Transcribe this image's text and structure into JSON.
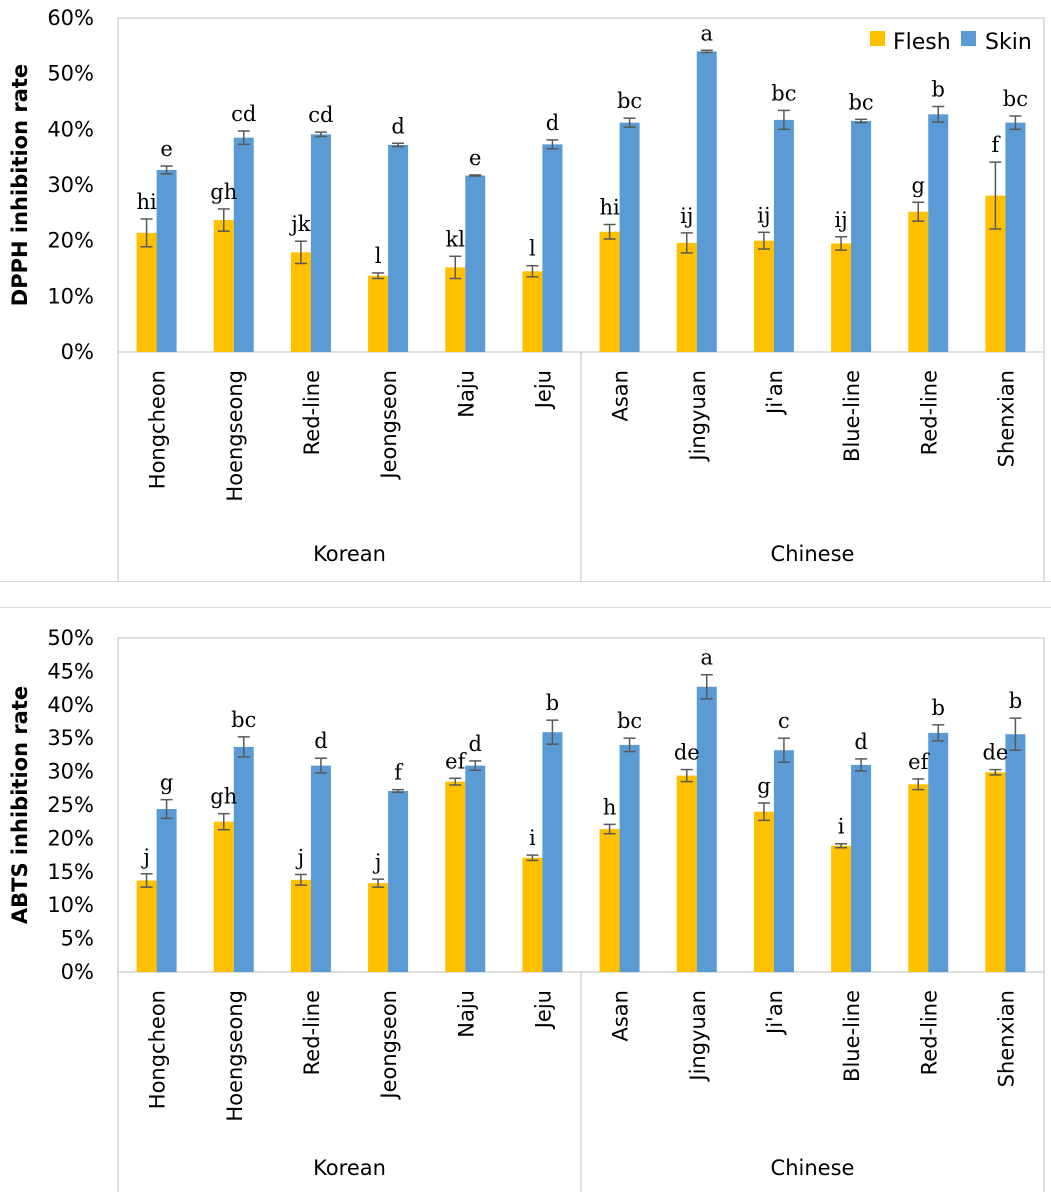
{
  "colors": {
    "flesh": "#FFC000",
    "skin": "#5B9BD5",
    "axis": "#BFBFBF",
    "error": "#595959"
  },
  "chart_data": [
    {
      "type": "bar",
      "ylabel": "DPPH inhibition rate",
      "ylim": [
        0,
        60
      ],
      "yticks": [
        0,
        10,
        20,
        30,
        40,
        50,
        60
      ],
      "ytick_labels": [
        "0%",
        "10%",
        "20%",
        "30%",
        "40%",
        "50%",
        "60%"
      ],
      "legend_position": "top-right",
      "groups": [
        {
          "label": "Korean",
          "categories": [
            "Hongcheon",
            "Hoengseong",
            "Red-line",
            "Jeongseon",
            "Naju",
            "Jeju"
          ]
        },
        {
          "label": "Chinese",
          "categories": [
            "Asan",
            "Jingyuan",
            "Ji'an",
            "Blue-line",
            "Red-line",
            "Shenxian"
          ]
        }
      ],
      "series": [
        {
          "name": "Flesh",
          "values": [
            21.4,
            23.7,
            17.9,
            13.7,
            15.2,
            14.5,
            21.6,
            19.6,
            20.0,
            19.5,
            25.2,
            28.1
          ],
          "errors": [
            2.5,
            2.0,
            2.0,
            0.5,
            2.0,
            1.0,
            1.3,
            1.8,
            1.5,
            1.2,
            1.7,
            6.0
          ],
          "labels": [
            "hi",
            "gh",
            "jk",
            "l",
            "kl",
            "l",
            "hi",
            "ij",
            "ij",
            "ij",
            "g",
            "f"
          ]
        },
        {
          "name": "Skin",
          "values": [
            32.7,
            38.5,
            39.1,
            37.2,
            31.7,
            37.3,
            41.2,
            54.0,
            41.7,
            41.5,
            42.7,
            41.2
          ],
          "errors": [
            0.7,
            1.2,
            0.4,
            0.3,
            0.1,
            0.8,
            0.8,
            0.2,
            1.7,
            0.3,
            1.4,
            1.2
          ],
          "labels": [
            "e",
            "cd",
            "cd",
            "d",
            "e",
            "d",
            "bc",
            "a",
            "bc",
            "bc",
            "b",
            "bc"
          ]
        }
      ]
    },
    {
      "type": "bar",
      "ylabel": "ABTS inhibition rate",
      "ylim": [
        0,
        50
      ],
      "yticks": [
        0,
        5,
        10,
        15,
        20,
        25,
        30,
        35,
        40,
        45,
        50
      ],
      "ytick_labels": [
        "0%",
        "5%",
        "10%",
        "15%",
        "20%",
        "25%",
        "30%",
        "35%",
        "40%",
        "45%",
        "50%"
      ],
      "groups": [
        {
          "label": "Korean",
          "categories": [
            "Hongcheon",
            "Hoengseong",
            "Red-line",
            "Jeongseon",
            "Naju",
            "Jeju"
          ]
        },
        {
          "label": "Chinese",
          "categories": [
            "Asan",
            "Jingyuan",
            "Ji'an",
            "Blue-line",
            "Red-line",
            "Shenxian"
          ]
        }
      ],
      "series": [
        {
          "name": "Flesh",
          "values": [
            13.7,
            22.5,
            13.8,
            13.3,
            28.5,
            17.1,
            21.4,
            29.4,
            24.0,
            18.9,
            28.1,
            29.9
          ],
          "errors": [
            1.0,
            1.2,
            0.8,
            0.6,
            0.5,
            0.4,
            0.7,
            0.9,
            1.3,
            0.3,
            0.8,
            0.4
          ],
          "labels": [
            "j",
            "gh",
            "j",
            "j",
            "ef",
            "i",
            "h",
            "de",
            "g",
            "i",
            "ef",
            "de"
          ]
        },
        {
          "name": "Skin",
          "values": [
            24.4,
            33.7,
            30.9,
            27.1,
            30.9,
            35.9,
            34.0,
            42.7,
            33.2,
            31.0,
            35.8,
            35.6
          ],
          "errors": [
            1.4,
            1.5,
            1.1,
            0.2,
            0.7,
            1.8,
            1.0,
            1.8,
            1.8,
            0.9,
            1.2,
            2.4
          ],
          "labels": [
            "g",
            "bc",
            "d",
            "f",
            "d",
            "b",
            "bc",
            "a",
            "c",
            "d",
            "b",
            "b"
          ]
        }
      ]
    }
  ]
}
